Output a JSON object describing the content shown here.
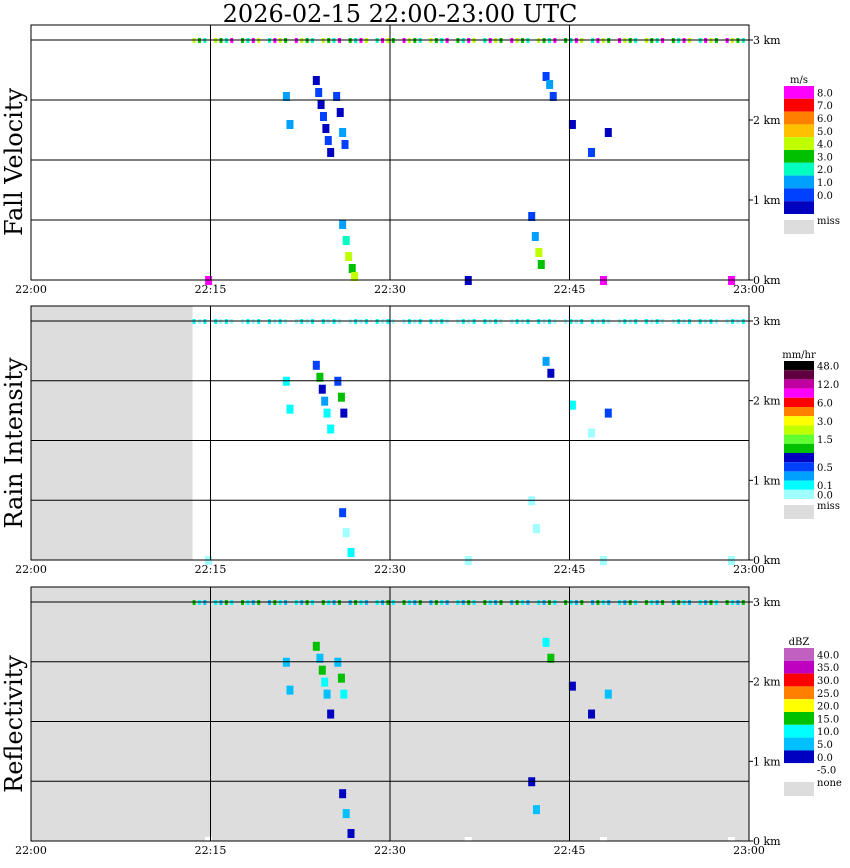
{
  "chart_data": [
    {
      "type": "heatmap",
      "title": "2026-02-15   22:00-23:00 UTC",
      "ylabel": "Fall Velocity",
      "x_ticks": [
        "22:00",
        "22:15",
        "22:30",
        "22:45",
        "23:00"
      ],
      "x_range_minutes": [
        0,
        60
      ],
      "y_ticks": [
        "0 km",
        "1 km",
        "2 km",
        "3 km"
      ],
      "y_range_km": [
        0,
        3.0
      ],
      "missing_before_minutes": 0,
      "legend": {
        "title": "m/s",
        "entries": [
          {
            "label": "8.0",
            "color": "#ff00ff"
          },
          {
            "label": "7.0",
            "color": "#ff0000"
          },
          {
            "label": "6.0",
            "color": "#ff8000"
          },
          {
            "label": "5.0",
            "color": "#ffc000"
          },
          {
            "label": "4.0",
            "color": "#c0ff00"
          },
          {
            "label": "3.0",
            "color": "#00c000"
          },
          {
            "label": "2.0",
            "color": "#00ffc0"
          },
          {
            "label": "1.0",
            "color": "#00a0ff"
          },
          {
            "label": "0.0",
            "color": "#0040ff"
          },
          {
            "label": "",
            "color": "#0000c0"
          }
        ],
        "missing_label": "miss",
        "missing_color": "#dddddd"
      },
      "cells": [
        {
          "t": 23.8,
          "z": 2.5,
          "c": "#0000c0"
        },
        {
          "t": 24.0,
          "z": 2.35,
          "c": "#0040ff"
        },
        {
          "t": 24.2,
          "z": 2.2,
          "c": "#0000c0"
        },
        {
          "t": 24.4,
          "z": 2.05,
          "c": "#0040ff"
        },
        {
          "t": 24.6,
          "z": 1.9,
          "c": "#0000c0"
        },
        {
          "t": 24.8,
          "z": 1.75,
          "c": "#0040ff"
        },
        {
          "t": 25.0,
          "z": 1.6,
          "c": "#0000c0"
        },
        {
          "t": 25.5,
          "z": 2.3,
          "c": "#0040ff"
        },
        {
          "t": 25.8,
          "z": 2.1,
          "c": "#0000c0"
        },
        {
          "t": 26.0,
          "z": 1.85,
          "c": "#00a0ff"
        },
        {
          "t": 26.2,
          "z": 1.7,
          "c": "#0040ff"
        },
        {
          "t": 21.3,
          "z": 2.3,
          "c": "#00a0ff"
        },
        {
          "t": 21.6,
          "z": 1.95,
          "c": "#00a0ff"
        },
        {
          "t": 26.0,
          "z": 0.7,
          "c": "#00a0ff"
        },
        {
          "t": 26.3,
          "z": 0.5,
          "c": "#00ffc0"
        },
        {
          "t": 26.5,
          "z": 0.3,
          "c": "#c0ff00"
        },
        {
          "t": 26.8,
          "z": 0.15,
          "c": "#00c000"
        },
        {
          "t": 27.0,
          "z": 0.05,
          "c": "#c0ff00"
        },
        {
          "t": 43.0,
          "z": 2.55,
          "c": "#0040ff"
        },
        {
          "t": 43.3,
          "z": 2.45,
          "c": "#00a0ff"
        },
        {
          "t": 43.6,
          "z": 2.3,
          "c": "#0040ff"
        },
        {
          "t": 45.2,
          "z": 1.95,
          "c": "#0000c0"
        },
        {
          "t": 46.8,
          "z": 1.6,
          "c": "#0040ff"
        },
        {
          "t": 48.2,
          "z": 1.85,
          "c": "#0000c0"
        },
        {
          "t": 41.8,
          "z": 0.8,
          "c": "#0040ff"
        },
        {
          "t": 42.1,
          "z": 0.55,
          "c": "#00a0ff"
        },
        {
          "t": 42.4,
          "z": 0.35,
          "c": "#c0ff00"
        },
        {
          "t": 42.6,
          "z": 0.2,
          "c": "#00c000"
        },
        {
          "t": 14.8,
          "z": 0.0,
          "c": "#ff00ff"
        },
        {
          "t": 36.5,
          "z": 0.0,
          "c": "#0000c0"
        },
        {
          "t": 47.8,
          "z": 0.0,
          "c": "#ff00ff"
        },
        {
          "t": 58.5,
          "z": 0.0,
          "c": "#ff00ff"
        }
      ],
      "top_band": {
        "z": 3.0,
        "from": 13.5,
        "to": 60,
        "colors": [
          "#c0ff00",
          "#00c000",
          "#00ffc0",
          "#ff00ff"
        ]
      }
    },
    {
      "type": "heatmap",
      "ylabel": "Rain Intensity",
      "x_ticks": [
        "22:00",
        "22:15",
        "22:30",
        "22:45",
        "23:00"
      ],
      "x_range_minutes": [
        0,
        60
      ],
      "y_ticks": [
        "0 km",
        "1 km",
        "2 km",
        "3 km"
      ],
      "y_range_km": [
        0,
        3.0
      ],
      "missing_before_minutes": 13.5,
      "legend": {
        "title": "mm/hr",
        "entries": [
          {
            "label": "48.0",
            "color": "#000000"
          },
          {
            "label": "",
            "color": "#600040"
          },
          {
            "label": "12.0",
            "color": "#c000a0"
          },
          {
            "label": "",
            "color": "#ff00ff"
          },
          {
            "label": "6.0",
            "color": "#ff0000"
          },
          {
            "label": "",
            "color": "#ff8000"
          },
          {
            "label": "3.0",
            "color": "#ffff00"
          },
          {
            "label": "",
            "color": "#c0ff00"
          },
          {
            "label": "1.5",
            "color": "#60ff30"
          },
          {
            "label": "",
            "color": "#00c000"
          },
          {
            "label": "",
            "color": "#0000c0"
          },
          {
            "label": "0.5",
            "color": "#0040ff"
          },
          {
            "label": "",
            "color": "#00a0ff"
          },
          {
            "label": "0.1",
            "color": "#00ffff"
          },
          {
            "label": "0.0",
            "color": "#a0ffff"
          }
        ],
        "missing_label": "miss",
        "missing_color": "#dddddd"
      },
      "cells": [
        {
          "t": 23.8,
          "z": 2.45,
          "c": "#0040ff"
        },
        {
          "t": 24.1,
          "z": 2.3,
          "c": "#00c000"
        },
        {
          "t": 24.3,
          "z": 2.15,
          "c": "#0000c0"
        },
        {
          "t": 24.5,
          "z": 2.0,
          "c": "#00a0ff"
        },
        {
          "t": 24.7,
          "z": 1.85,
          "c": "#00ffff"
        },
        {
          "t": 25.0,
          "z": 1.65,
          "c": "#00ffff"
        },
        {
          "t": 25.6,
          "z": 2.25,
          "c": "#0040ff"
        },
        {
          "t": 25.9,
          "z": 2.05,
          "c": "#00c000"
        },
        {
          "t": 26.1,
          "z": 1.85,
          "c": "#0000c0"
        },
        {
          "t": 21.3,
          "z": 2.25,
          "c": "#00ffff"
        },
        {
          "t": 21.6,
          "z": 1.9,
          "c": "#00ffff"
        },
        {
          "t": 26.0,
          "z": 0.6,
          "c": "#0040ff"
        },
        {
          "t": 26.3,
          "z": 0.35,
          "c": "#a0ffff"
        },
        {
          "t": 26.7,
          "z": 0.1,
          "c": "#00ffff"
        },
        {
          "t": 43.0,
          "z": 2.5,
          "c": "#00a0ff"
        },
        {
          "t": 43.4,
          "z": 2.35,
          "c": "#0000c0"
        },
        {
          "t": 45.2,
          "z": 1.95,
          "c": "#00ffff"
        },
        {
          "t": 46.8,
          "z": 1.6,
          "c": "#a0ffff"
        },
        {
          "t": 48.2,
          "z": 1.85,
          "c": "#0040ff"
        },
        {
          "t": 41.8,
          "z": 0.75,
          "c": "#a0ffff"
        },
        {
          "t": 42.2,
          "z": 0.4,
          "c": "#a0ffff"
        },
        {
          "t": 14.8,
          "z": 0.0,
          "c": "#a0ffff"
        },
        {
          "t": 36.5,
          "z": 0.0,
          "c": "#a0ffff"
        },
        {
          "t": 47.8,
          "z": 0.0,
          "c": "#a0ffff"
        },
        {
          "t": 58.5,
          "z": 0.0,
          "c": "#a0ffff"
        }
      ],
      "top_band": {
        "z": 3.0,
        "from": 13.5,
        "to": 60,
        "colors": [
          "#00ffff",
          "#a0ffff"
        ]
      }
    },
    {
      "type": "heatmap",
      "ylabel": "Reflectivity",
      "x_ticks": [
        "22:00",
        "22:15",
        "22:30",
        "22:45",
        "23:00"
      ],
      "x_range_minutes": [
        0,
        60
      ],
      "y_ticks": [
        "0 km",
        "1 km",
        "2 km",
        "3 km"
      ],
      "y_range_km": [
        0,
        3.0
      ],
      "missing_before_minutes": 60,
      "legend": {
        "title": "dBZ",
        "entries": [
          {
            "label": "40.0",
            "color": "#c060c0"
          },
          {
            "label": "35.0",
            "color": "#c000c0"
          },
          {
            "label": "30.0",
            "color": "#ff0000"
          },
          {
            "label": "25.0",
            "color": "#ff8000"
          },
          {
            "label": "20.0",
            "color": "#ffff00"
          },
          {
            "label": "15.0",
            "color": "#00c000"
          },
          {
            "label": "10.0",
            "color": "#00ffff"
          },
          {
            "label": "5.0",
            "color": "#00c0ff"
          },
          {
            "label": "0.0",
            "color": "#0000c0"
          },
          {
            "label": "-5.0",
            "color": "#ffffff"
          }
        ],
        "missing_label": "none",
        "missing_color": "#dddddd"
      },
      "cells": [
        {
          "t": 23.8,
          "z": 2.45,
          "c": "#00c000"
        },
        {
          "t": 24.1,
          "z": 2.3,
          "c": "#00c0ff"
        },
        {
          "t": 24.3,
          "z": 2.15,
          "c": "#00c000"
        },
        {
          "t": 24.5,
          "z": 2.0,
          "c": "#00ffff"
        },
        {
          "t": 24.7,
          "z": 1.85,
          "c": "#00c0ff"
        },
        {
          "t": 25.0,
          "z": 1.6,
          "c": "#0000c0"
        },
        {
          "t": 25.6,
          "z": 2.25,
          "c": "#00c0ff"
        },
        {
          "t": 25.9,
          "z": 2.05,
          "c": "#00c000"
        },
        {
          "t": 26.1,
          "z": 1.85,
          "c": "#00ffff"
        },
        {
          "t": 21.3,
          "z": 2.25,
          "c": "#00c0ff"
        },
        {
          "t": 21.6,
          "z": 1.9,
          "c": "#00c0ff"
        },
        {
          "t": 26.0,
          "z": 0.6,
          "c": "#0000c0"
        },
        {
          "t": 26.3,
          "z": 0.35,
          "c": "#00c0ff"
        },
        {
          "t": 26.7,
          "z": 0.1,
          "c": "#0000c0"
        },
        {
          "t": 43.0,
          "z": 2.5,
          "c": "#00ffff"
        },
        {
          "t": 43.4,
          "z": 2.3,
          "c": "#00c000"
        },
        {
          "t": 45.2,
          "z": 1.95,
          "c": "#0000c0"
        },
        {
          "t": 46.8,
          "z": 1.6,
          "c": "#0000c0"
        },
        {
          "t": 48.2,
          "z": 1.85,
          "c": "#00c0ff"
        },
        {
          "t": 41.8,
          "z": 0.75,
          "c": "#0000c0"
        },
        {
          "t": 42.2,
          "z": 0.4,
          "c": "#00c0ff"
        },
        {
          "t": 14.8,
          "z": 0.0,
          "c": "#ffffff"
        },
        {
          "t": 36.5,
          "z": 0.0,
          "c": "#ffffff"
        },
        {
          "t": 47.8,
          "z": 0.0,
          "c": "#ffffff"
        },
        {
          "t": 58.5,
          "z": 0.0,
          "c": "#ffffff"
        }
      ],
      "top_band": {
        "z": 3.0,
        "from": 13.5,
        "to": 60,
        "colors": [
          "#00c000",
          "#00ffff",
          "#00c0ff"
        ]
      }
    }
  ]
}
